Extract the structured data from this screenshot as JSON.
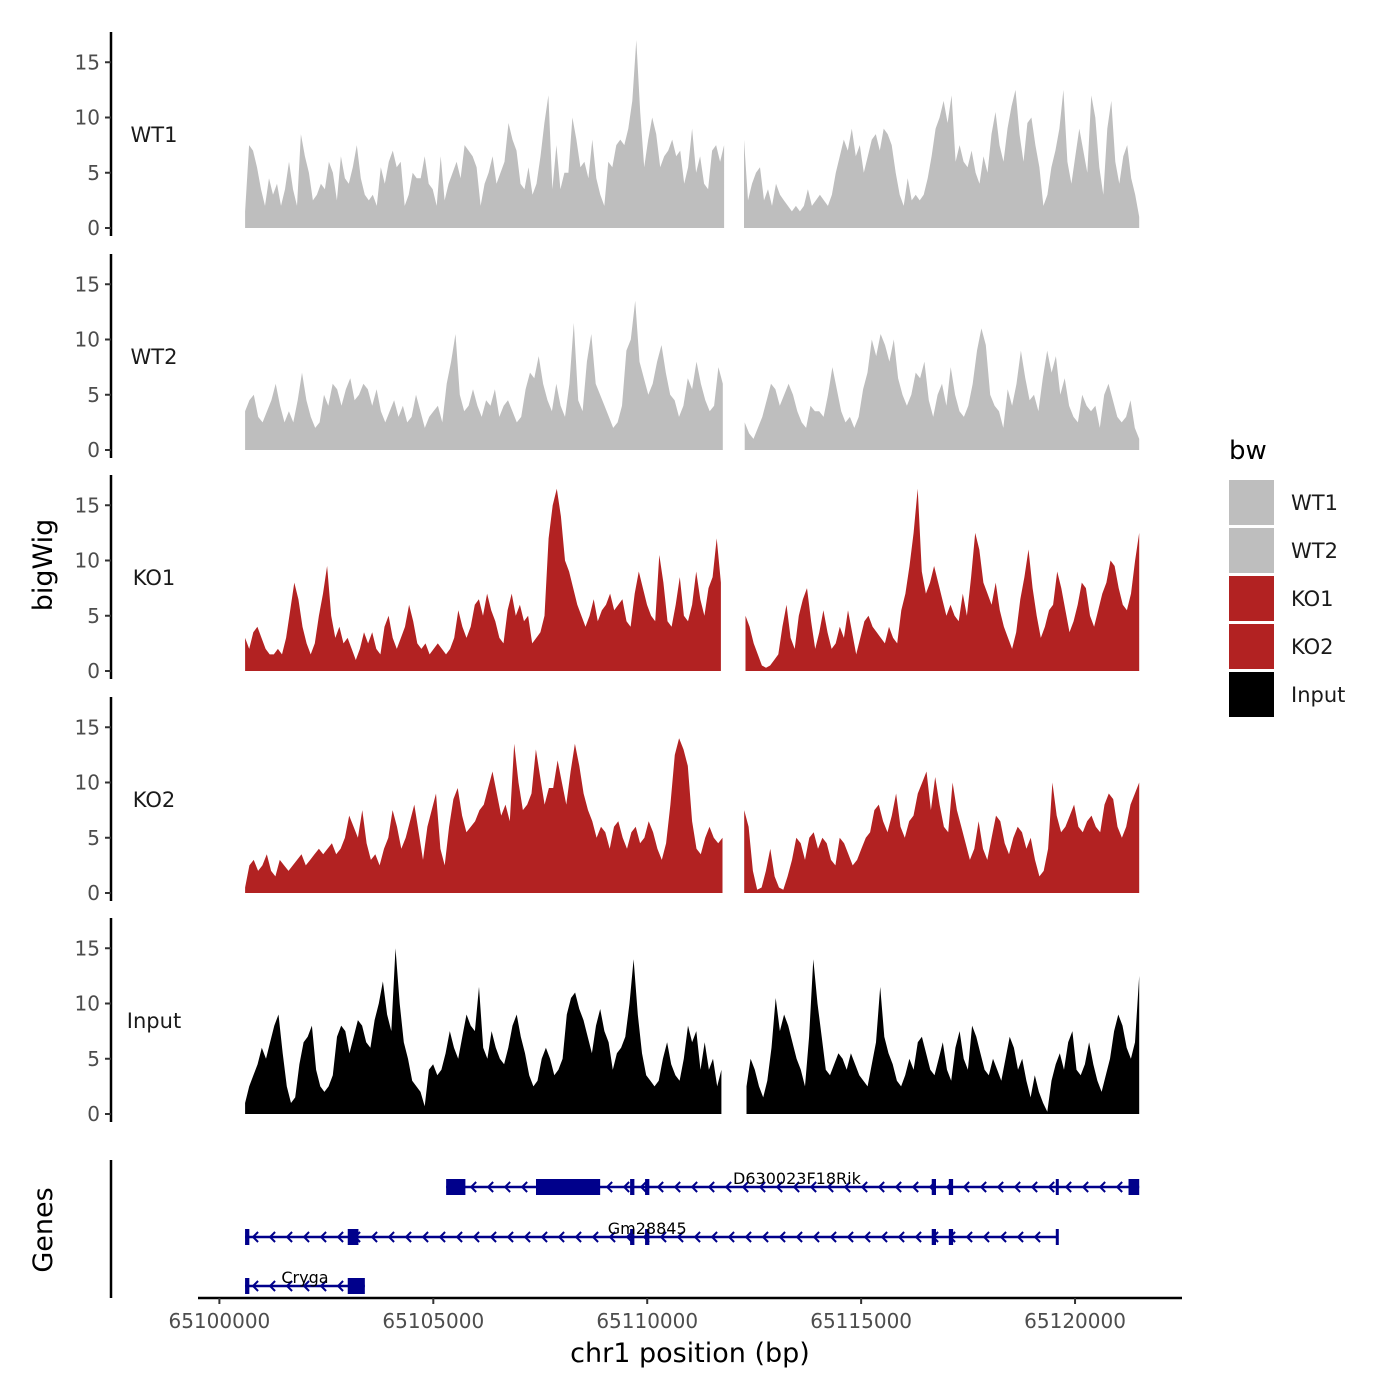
{
  "chart_data": {
    "type": "area",
    "chromosome": "chr1",
    "xlabel": "chr1 position (bp)",
    "ylabel": "bigWig",
    "genes_label": "Genes",
    "xlim": [
      65099500,
      65122500
    ],
    "data_range": [
      65100600,
      65121500
    ],
    "gaps": [
      [
        65111800,
        65112250
      ]
    ],
    "x_ticks": [
      65100000,
      65105000,
      65110000,
      65115000,
      65120000
    ],
    "x_tick_labels": [
      "65100000",
      "65105000",
      "65110000",
      "65115000",
      "65120000"
    ],
    "ylim": [
      0,
      17.5
    ],
    "y_ticks": [
      0,
      5,
      10,
      15
    ],
    "y_tick_labels": [
      "0",
      "5",
      "10",
      "15"
    ],
    "legend": {
      "title": "bw",
      "entries": [
        {
          "label": "WT1",
          "color": "#bebebe"
        },
        {
          "label": "WT2",
          "color": "#bebebe"
        },
        {
          "label": "KO1",
          "color": "#b22222"
        },
        {
          "label": "KO2",
          "color": "#b22222"
        },
        {
          "label": "Input",
          "color": "#000000"
        }
      ]
    },
    "series": [
      {
        "name": "WT1",
        "color": "#bebebe",
        "values": [
          1.5,
          7.5,
          7.0,
          5.5,
          3.5,
          2.0,
          4.5,
          3.0,
          4.0,
          2.0,
          3.5,
          6.0,
          3.5,
          2.0,
          8.5,
          6.5,
          5.0,
          2.5,
          3.0,
          4.0,
          3.5,
          6.0,
          5.0,
          2.5,
          6.5,
          4.5,
          4.0,
          5.5,
          7.5,
          4.5,
          3.0,
          2.5,
          3.0,
          2.0,
          5.5,
          4.0,
          6.0,
          7.0,
          5.5,
          6.0,
          2.0,
          3.0,
          5.0,
          4.5,
          4.5,
          6.5,
          4.0,
          3.5,
          2.0,
          6.5,
          2.5,
          4.0,
          5.0,
          6.0,
          4.5,
          7.5,
          7.0,
          6.5,
          5.5,
          2.0,
          4.0,
          5.0,
          6.5,
          4.0,
          5.0,
          6.0,
          9.5,
          8.0,
          7.0,
          4.0,
          3.5,
          5.5,
          3.0,
          4.0,
          6.5,
          9.5,
          12.0,
          3.5,
          7.5,
          3.5,
          5.0,
          5.0,
          10.0,
          8.0,
          5.5,
          6.0,
          4.5,
          8.0,
          4.5,
          3.0,
          2.0,
          6.0,
          5.5,
          7.5,
          8.0,
          7.5,
          9.0,
          11.5,
          17.0,
          10.5,
          5.5,
          8.0,
          10.0,
          8.5,
          5.5,
          6.5,
          7.0,
          8.0,
          6.5,
          7.0,
          4.0,
          5.5,
          9.0,
          5.0,
          6.5,
          4.0,
          3.5,
          7.0,
          7.5,
          6.0,
          7.5,
          5.0,
          4.0,
          8.0,
          7.0,
          8.0,
          2.5,
          4.0,
          5.0,
          5.5,
          2.5,
          3.5,
          2.0,
          4.0,
          3.0,
          2.5,
          2.0,
          1.5,
          2.0,
          1.5,
          2.0,
          3.5,
          2.0,
          2.5,
          3.0,
          2.5,
          2.0,
          3.0,
          5.0,
          6.5,
          8.0,
          7.0,
          9.0,
          6.5,
          7.5,
          5.0,
          6.5,
          8.0,
          8.5,
          7.0,
          9.0,
          8.5,
          7.5,
          5.0,
          3.0,
          2.0,
          4.5,
          2.5,
          3.0,
          2.5,
          3.0,
          4.5,
          6.5,
          9.0,
          10.0,
          11.5,
          9.5,
          12.0,
          6.0,
          7.5,
          6.0,
          5.5,
          7.0,
          5.0,
          4.0,
          6.5,
          5.0,
          8.5,
          10.5,
          7.5,
          6.0,
          9.0,
          11.0,
          12.5,
          8.5,
          6.0,
          9.5,
          10.0,
          7.5,
          5.5,
          2.0,
          3.0,
          5.5,
          7.0,
          9.0,
          12.5,
          6.0,
          4.0,
          6.5,
          9.0,
          7.0,
          5.0,
          12.0,
          10.0,
          5.5,
          3.0,
          9.0,
          11.5,
          6.0,
          4.0,
          6.5,
          7.5,
          4.5,
          3.0,
          1.0
        ]
      },
      {
        "name": "WT2",
        "color": "#bebebe",
        "values": [
          3.5,
          4.5,
          5.0,
          3.0,
          2.5,
          3.5,
          4.5,
          6.0,
          4.0,
          2.5,
          3.5,
          2.5,
          4.5,
          7.0,
          4.5,
          3.0,
          2.0,
          2.5,
          5.0,
          4.0,
          6.0,
          5.5,
          4.0,
          5.5,
          6.5,
          4.5,
          5.0,
          6.0,
          5.5,
          4.0,
          5.5,
          3.5,
          2.5,
          3.5,
          4.5,
          3.0,
          4.0,
          2.5,
          3.0,
          5.0,
          3.5,
          2.0,
          3.0,
          3.5,
          4.0,
          2.5,
          6.0,
          8.0,
          10.5,
          5.0,
          3.5,
          4.0,
          5.5,
          4.0,
          3.0,
          4.5,
          4.0,
          5.5,
          3.0,
          4.0,
          4.5,
          3.5,
          2.5,
          3.0,
          5.5,
          7.0,
          6.5,
          8.5,
          6.0,
          4.5,
          3.5,
          6.0,
          4.0,
          3.0,
          6.0,
          11.5,
          4.5,
          3.5,
          8.0,
          10.5,
          6.0,
          5.0,
          4.0,
          3.0,
          2.0,
          2.5,
          4.0,
          9.0,
          10.0,
          13.5,
          8.0,
          6.5,
          5.0,
          6.0,
          8.0,
          9.5,
          7.0,
          5.0,
          4.5,
          3.0,
          4.0,
          6.5,
          5.5,
          8.0,
          6.0,
          4.5,
          3.5,
          4.0,
          7.5,
          6.0,
          4.5,
          2.5,
          2.0,
          3.0,
          2.5,
          1.5,
          1.0,
          2.0,
          3.0,
          4.5,
          6.0,
          5.5,
          4.0,
          5.0,
          6.0,
          5.0,
          3.5,
          2.5,
          2.0,
          4.0,
          3.5,
          3.5,
          3.0,
          5.0,
          7.5,
          5.5,
          3.5,
          2.5,
          3.0,
          2.0,
          3.0,
          5.5,
          7.0,
          10.0,
          8.5,
          10.5,
          9.5,
          8.0,
          10.0,
          6.5,
          5.0,
          4.0,
          5.0,
          7.0,
          6.5,
          8.0,
          4.5,
          3.0,
          5.0,
          6.0,
          4.0,
          7.5,
          5.0,
          3.5,
          3.0,
          4.0,
          6.0,
          9.0,
          11.0,
          9.5,
          5.0,
          4.0,
          3.5,
          2.0,
          5.5,
          4.0,
          6.0,
          9.0,
          6.5,
          4.5,
          5.0,
          3.5,
          6.5,
          9.0,
          7.0,
          8.5,
          5.0,
          6.5,
          4.0,
          3.0,
          2.5,
          5.0,
          4.0,
          3.5,
          4.0,
          2.0,
          5.0,
          6.0,
          4.5,
          3.0,
          2.5,
          3.0,
          4.5,
          2.0,
          1.0
        ]
      },
      {
        "name": "KO1",
        "color": "#b22222",
        "values": [
          3.0,
          2.0,
          3.5,
          4.0,
          3.0,
          2.0,
          1.5,
          1.5,
          2.0,
          1.5,
          3.0,
          5.5,
          8.0,
          6.5,
          4.0,
          2.5,
          1.5,
          2.5,
          5.0,
          7.0,
          9.5,
          5.0,
          3.0,
          4.0,
          2.5,
          3.0,
          2.0,
          1.0,
          2.0,
          3.5,
          2.5,
          3.5,
          2.0,
          1.5,
          4.0,
          5.0,
          3.0,
          2.0,
          3.0,
          4.0,
          6.0,
          4.5,
          2.5,
          2.0,
          2.5,
          1.5,
          2.0,
          2.5,
          2.0,
          1.5,
          2.0,
          3.0,
          5.5,
          4.0,
          3.0,
          4.0,
          6.0,
          6.5,
          5.0,
          7.0,
          5.5,
          4.5,
          3.0,
          2.5,
          5.5,
          7.0,
          5.0,
          6.0,
          4.5,
          5.0,
          2.5,
          3.0,
          3.5,
          5.0,
          12.0,
          15.0,
          16.5,
          14.0,
          10.0,
          9.0,
          7.5,
          6.0,
          5.0,
          4.0,
          5.0,
          6.5,
          4.5,
          5.5,
          6.0,
          7.0,
          5.5,
          6.0,
          6.5,
          4.5,
          4.0,
          7.0,
          9.0,
          7.5,
          6.0,
          5.0,
          4.5,
          10.5,
          8.0,
          4.5,
          4.0,
          6.0,
          8.5,
          5.0,
          4.5,
          6.0,
          9.0,
          6.5,
          5.0,
          7.5,
          8.5,
          12.0,
          8.0,
          5.5,
          4.0,
          5.0,
          5.5,
          8.5,
          5.0,
          4.0,
          2.5,
          1.5,
          0.5,
          0.3,
          0.5,
          1.0,
          1.5,
          4.0,
          6.0,
          3.0,
          2.0,
          5.0,
          6.5,
          7.5,
          4.5,
          2.0,
          3.5,
          5.5,
          3.5,
          2.0,
          2.5,
          4.0,
          3.0,
          5.5,
          3.5,
          1.5,
          3.0,
          4.5,
          5.0,
          4.0,
          3.5,
          3.0,
          2.5,
          4.0,
          3.0,
          2.5,
          5.5,
          7.0,
          9.5,
          12.5,
          16.5,
          9.0,
          7.0,
          8.0,
          9.5,
          8.0,
          6.5,
          5.0,
          6.0,
          5.0,
          4.5,
          7.0,
          5.0,
          8.5,
          12.5,
          11.0,
          8.0,
          7.0,
          6.0,
          8.0,
          5.5,
          4.0,
          3.0,
          2.0,
          3.5,
          6.5,
          8.5,
          11.0,
          7.5,
          5.0,
          3.0,
          4.0,
          5.5,
          6.0,
          9.0,
          7.5,
          5.5,
          3.5,
          4.5,
          6.0,
          8.0,
          7.5,
          5.0,
          4.0,
          5.5,
          7.0,
          8.0,
          10.0,
          9.5,
          7.5,
          6.0,
          5.5,
          7.0,
          10.0,
          12.5
        ]
      },
      {
        "name": "KO2",
        "color": "#b22222",
        "values": [
          0.5,
          2.5,
          3.0,
          2.0,
          2.5,
          3.5,
          2.0,
          1.5,
          3.0,
          2.5,
          2.0,
          2.5,
          3.0,
          3.5,
          2.5,
          3.0,
          3.5,
          4.0,
          3.5,
          4.0,
          4.5,
          3.5,
          4.0,
          5.0,
          7.0,
          6.0,
          5.0,
          7.5,
          4.5,
          3.0,
          3.5,
          2.5,
          4.0,
          5.0,
          7.5,
          6.0,
          4.0,
          5.0,
          6.5,
          8.0,
          5.5,
          3.0,
          6.0,
          7.5,
          9.0,
          4.0,
          2.5,
          6.0,
          8.5,
          9.5,
          7.0,
          5.5,
          6.0,
          6.5,
          7.5,
          8.0,
          9.5,
          11.0,
          9.0,
          7.0,
          8.0,
          6.5,
          13.5,
          10.0,
          7.5,
          8.0,
          9.0,
          13.0,
          10.5,
          8.0,
          9.5,
          9.5,
          12.0,
          10.0,
          8.0,
          11.0,
          13.5,
          11.5,
          9.0,
          7.5,
          6.5,
          5.0,
          6.0,
          5.5,
          4.0,
          6.0,
          6.5,
          5.0,
          4.0,
          5.5,
          6.0,
          4.5,
          5.0,
          6.5,
          5.5,
          4.0,
          3.0,
          4.5,
          8.0,
          12.5,
          14.0,
          13.0,
          11.5,
          6.5,
          4.0,
          3.5,
          5.0,
          6.0,
          5.0,
          4.5,
          5.0,
          5.5,
          6.0,
          6.5,
          7.0,
          7.5,
          6.0,
          2.0,
          0.3,
          0.5,
          2.0,
          4.0,
          1.5,
          0.5,
          0.3,
          1.5,
          3.0,
          5.0,
          4.5,
          3.0,
          5.0,
          5.5,
          4.0,
          5.0,
          4.5,
          3.0,
          2.5,
          5.0,
          4.5,
          3.5,
          2.5,
          3.0,
          4.0,
          5.0,
          5.5,
          7.5,
          8.0,
          6.5,
          5.5,
          7.0,
          9.0,
          6.0,
          5.0,
          6.5,
          7.0,
          9.0,
          10.0,
          11.0,
          7.5,
          10.5,
          8.0,
          6.0,
          5.5,
          10.0,
          7.5,
          6.0,
          4.5,
          3.0,
          4.0,
          6.5,
          4.0,
          3.0,
          5.0,
          7.0,
          6.5,
          4.5,
          3.5,
          5.0,
          6.0,
          5.5,
          4.0,
          5.0,
          3.0,
          1.5,
          2.0,
          4.0,
          10.0,
          7.0,
          5.5,
          6.0,
          7.0,
          8.0,
          6.0,
          5.5,
          6.5,
          7.0,
          6.0,
          5.5,
          8.0,
          9.0,
          8.5,
          6.0,
          5.0,
          6.0,
          8.0,
          9.0,
          10.0
        ]
      },
      {
        "name": "Input",
        "color": "#000000",
        "values": [
          1.0,
          2.5,
          3.5,
          4.5,
          6.0,
          5.0,
          6.5,
          8.0,
          9.0,
          5.5,
          2.5,
          1.0,
          1.5,
          4.5,
          6.5,
          7.0,
          8.0,
          4.0,
          2.5,
          2.0,
          2.5,
          3.5,
          7.0,
          8.0,
          7.5,
          5.5,
          7.0,
          8.5,
          8.0,
          6.5,
          6.0,
          8.5,
          10.0,
          12.0,
          9.0,
          7.5,
          15.0,
          10.0,
          6.5,
          5.0,
          3.0,
          2.5,
          2.0,
          0.7,
          4.0,
          4.5,
          3.5,
          4.0,
          5.5,
          7.5,
          6.0,
          5.0,
          7.0,
          9.0,
          8.0,
          7.5,
          11.5,
          6.0,
          5.0,
          7.5,
          6.0,
          5.0,
          4.5,
          6.0,
          8.0,
          9.0,
          7.0,
          5.5,
          3.5,
          2.5,
          3.0,
          5.0,
          6.0,
          5.0,
          3.5,
          4.0,
          5.0,
          9.0,
          10.5,
          11.0,
          9.5,
          8.5,
          7.0,
          5.5,
          8.0,
          9.5,
          7.5,
          6.5,
          4.0,
          5.5,
          6.0,
          7.0,
          10.0,
          14.0,
          9.0,
          5.5,
          3.5,
          3.0,
          2.5,
          3.0,
          5.0,
          6.5,
          4.5,
          3.5,
          3.0,
          5.0,
          8.0,
          6.5,
          7.5,
          4.0,
          6.5,
          4.0,
          5.0,
          2.5,
          4.0,
          9.5,
          7.0,
          5.5,
          4.0,
          3.0,
          2.5,
          5.0,
          4.0,
          2.5,
          1.5,
          3.0,
          6.0,
          10.5,
          7.5,
          9.0,
          8.0,
          6.5,
          5.0,
          4.0,
          2.5,
          7.0,
          14.0,
          10.0,
          7.0,
          4.0,
          3.5,
          4.5,
          5.5,
          5.0,
          4.0,
          5.5,
          4.5,
          3.5,
          3.0,
          2.5,
          4.5,
          6.5,
          11.5,
          7.0,
          5.5,
          4.5,
          3.0,
          2.5,
          3.5,
          5.0,
          4.0,
          6.5,
          7.0,
          5.5,
          4.0,
          3.5,
          5.0,
          6.5,
          4.0,
          3.0,
          6.0,
          7.5,
          5.0,
          4.0,
          8.0,
          7.0,
          5.5,
          4.0,
          3.5,
          5.0,
          4.0,
          3.0,
          5.0,
          7.0,
          6.0,
          4.0,
          5.0,
          3.0,
          1.5,
          3.5,
          2.0,
          1.0,
          0.2,
          3.0,
          4.5,
          5.5,
          4.0,
          6.5,
          7.5,
          4.0,
          3.5,
          4.5,
          6.5,
          4.5,
          3.0,
          2.0,
          3.5,
          5.0,
          7.5,
          9.0,
          8.0,
          6.0,
          5.0,
          6.5,
          12.5
        ]
      }
    ],
    "genes": [
      {
        "name": "D630023F18Rik",
        "strand": "-",
        "start": 65105300,
        "end": 65121500,
        "label_pos": 65113500,
        "exons": [
          [
            65105300,
            65105750
          ],
          [
            65107400,
            65108900
          ],
          [
            65109600,
            65109700
          ],
          [
            65109950,
            65110050
          ],
          [
            65116650,
            65116750
          ],
          [
            65117050,
            65117150
          ],
          [
            65119550,
            65119620
          ],
          [
            65121250,
            65121500
          ]
        ]
      },
      {
        "name": "Gm28845",
        "strand": "-",
        "start": 65100600,
        "end": 65119600,
        "label_pos": 65110000,
        "exons": [
          [
            65100600,
            65100700
          ],
          [
            65103000,
            65103250
          ],
          [
            65109600,
            65109700
          ],
          [
            65109950,
            65110050
          ],
          [
            65116650,
            65116750
          ],
          [
            65117050,
            65117150
          ],
          [
            65119550,
            65119620
          ]
        ]
      },
      {
        "name": "Cryga",
        "strand": "-",
        "start": 65100600,
        "end": 65103400,
        "label_pos": 65102000,
        "exons": [
          [
            65100600,
            65100700
          ],
          [
            65103000,
            65103400
          ]
        ]
      }
    ]
  }
}
